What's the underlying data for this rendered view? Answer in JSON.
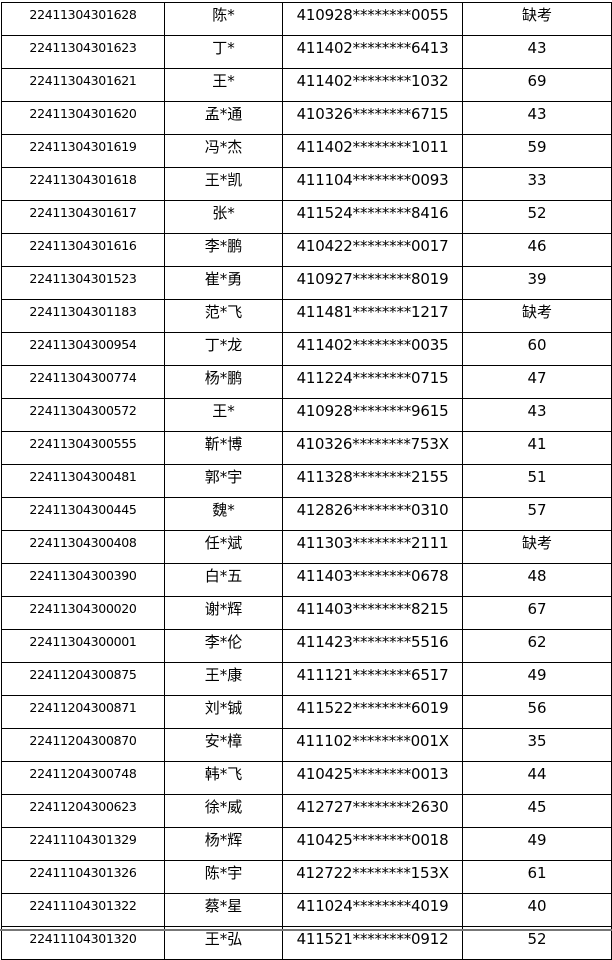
{
  "rows": [
    [
      "22411304301628",
      "陈*",
      "410928********0055",
      "缺考"
    ],
    [
      "22411304301623",
      "丁*",
      "411402********6413",
      "43"
    ],
    [
      "22411304301621",
      "王*",
      "411402********1032",
      "69"
    ],
    [
      "22411304301620",
      "孟*通",
      "410326********6715",
      "43"
    ],
    [
      "22411304301619",
      "冯*杰",
      "411402********1011",
      "59"
    ],
    [
      "22411304301618",
      "王*凯",
      "411104********0093",
      "33"
    ],
    [
      "22411304301617",
      "张*",
      "411524********8416",
      "52"
    ],
    [
      "22411304301616",
      "李*鹏",
      "410422********0017",
      "46"
    ],
    [
      "22411304301523",
      "崔*勇",
      "410927********8019",
      "39"
    ],
    [
      "22411304301183",
      "范*飞",
      "411481********1217",
      "缺考"
    ],
    [
      "22411304300954",
      "丁*龙",
      "411402********0035",
      "60"
    ],
    [
      "22411304300774",
      "杨*鹏",
      "411224********0715",
      "47"
    ],
    [
      "22411304300572",
      "王*",
      "410928********9615",
      "43"
    ],
    [
      "22411304300555",
      "靳*博",
      "410326********753X",
      "41"
    ],
    [
      "22411304300481",
      "郭*宇",
      "411328********2155",
      "51"
    ],
    [
      "22411304300445",
      "魏*",
      "412826********0310",
      "57"
    ],
    [
      "22411304300408",
      "任*斌",
      "411303********2111",
      "缺考"
    ],
    [
      "22411304300390",
      "白*五",
      "411403********0678",
      "48"
    ],
    [
      "22411304300020",
      "谢*辉",
      "411403********8215",
      "67"
    ],
    [
      "22411304300001",
      "李*伦",
      "411423********5516",
      "62"
    ],
    [
      "22411204300875",
      "王*康",
      "411121********6517",
      "49"
    ],
    [
      "22411204300871",
      "刘*铖",
      "411522********6019",
      "56"
    ],
    [
      "22411204300870",
      "安*樟",
      "411102********001X",
      "35"
    ],
    [
      "22411204300748",
      "韩*飞",
      "410425********0013",
      "44"
    ],
    [
      "22411204300623",
      "徐*威",
      "412727********2630",
      "45"
    ],
    [
      "22411104301329",
      "杨*辉",
      "410425********0018",
      "49"
    ],
    [
      "22411104301326",
      "陈*宇",
      "412722********153X",
      "61"
    ],
    [
      "22411104301322",
      "蔡*星",
      "411024********4019",
      "40"
    ],
    [
      "22411104301320",
      "王*弘",
      "411521********0912",
      "52"
    ]
  ]
}
